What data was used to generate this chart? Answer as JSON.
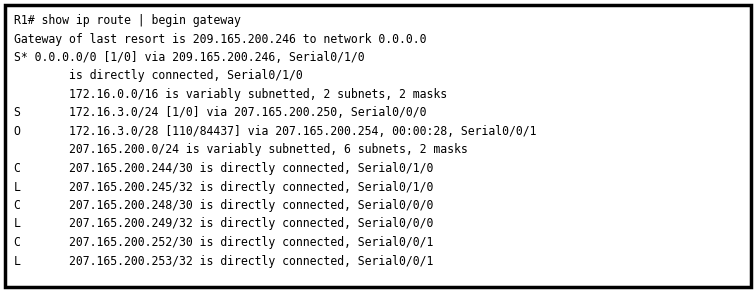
{
  "bg_color": "#ffffff",
  "border_color": "#000000",
  "text_color": "#000000",
  "font_size": 8.3,
  "lines": [
    "R1# show ip route | begin gateway",
    "Gateway of last resort is 209.165.200.246 to network 0.0.0.0",
    "S* 0.0.0.0/0 [1/0] via 209.165.200.246, Serial0/1/0",
    "        is directly connected, Serial0/1/0",
    "        172.16.0.0/16 is variably subnetted, 2 subnets, 2 masks",
    "S       172.16.3.0/24 [1/0] via 207.165.200.250, Serial0/0/0",
    "O       172.16.3.0/28 [110/84437] via 207.165.200.254, 00:00:28, Serial0/0/1",
    "        207.165.200.0/24 is variably subnetted, 6 subnets, 2 masks",
    "C       207.165.200.244/30 is directly connected, Serial0/1/0",
    "L       207.165.200.245/32 is directly connected, Serial0/1/0",
    "C       207.165.200.248/30 is directly connected, Serial0/0/0",
    "L       207.165.200.249/32 is directly connected, Serial0/0/0",
    "C       207.165.200.252/30 is directly connected, Serial0/0/1",
    "L       207.165.200.253/32 is directly connected, Serial0/0/1"
  ]
}
